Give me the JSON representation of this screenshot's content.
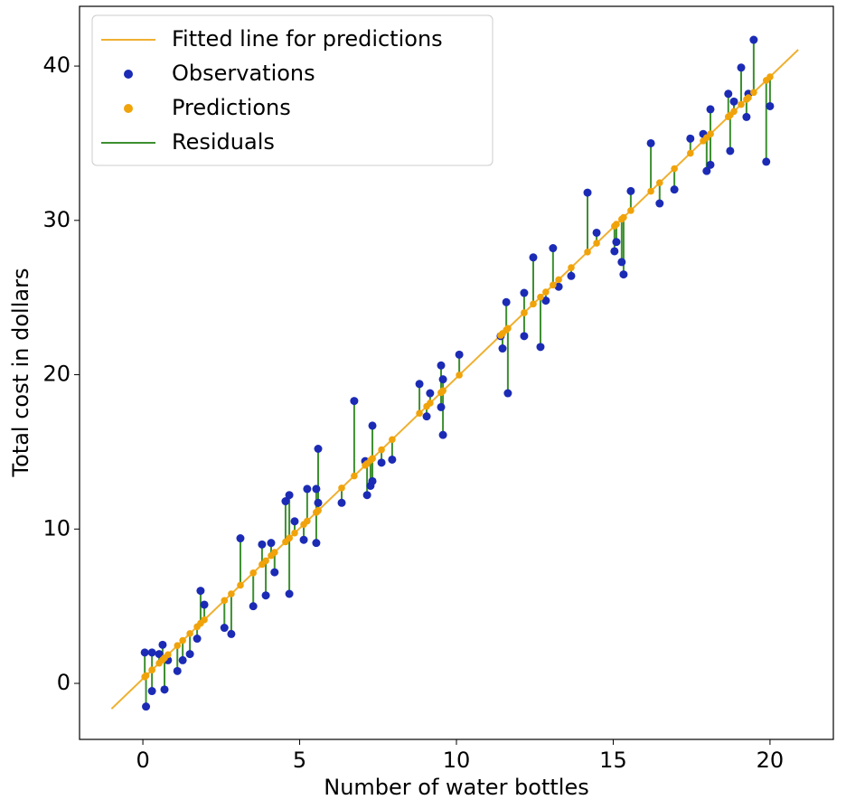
{
  "chart_data": {
    "type": "scatter",
    "xlabel": "Number of water bottles",
    "ylabel": "Total cost in dollars",
    "xlim": [
      -2.02,
      22.02
    ],
    "ylim": [
      -3.63,
      43.87
    ],
    "xticks": [
      0,
      5,
      10,
      15,
      20
    ],
    "yticks": [
      0,
      10,
      20,
      30,
      40
    ],
    "legend": "upper left",
    "x": [
      0.06,
      0.1,
      0.29,
      0.29,
      0.52,
      0.63,
      0.69,
      0.8,
      1.1,
      1.27,
      1.5,
      1.73,
      1.84,
      1.96,
      2.6,
      2.82,
      3.11,
      3.52,
      3.8,
      3.92,
      4.09,
      4.2,
      4.55,
      4.67,
      4.67,
      4.84,
      5.13,
      5.24,
      5.53,
      5.53,
      5.59,
      5.59,
      6.34,
      6.74,
      7.09,
      7.15,
      7.26,
      7.32,
      7.32,
      7.61,
      7.95,
      8.82,
      9.05,
      9.16,
      9.51,
      9.51,
      9.57,
      9.57,
      10.09,
      11.41,
      11.47,
      11.59,
      11.64,
      12.16,
      12.16,
      12.45,
      12.68,
      12.85,
      13.08,
      13.26,
      13.66,
      14.18,
      14.47,
      15.04,
      15.1,
      15.27,
      15.33,
      15.56,
      16.2,
      16.48,
      16.95,
      17.46,
      17.87,
      17.98,
      18.1,
      18.1,
      18.67,
      18.73,
      18.85,
      19.08,
      19.25,
      19.31,
      19.48,
      19.88,
      20.0
    ],
    "series": [
      {
        "name": "Fitted line for predictions",
        "kind": "line",
        "color": "#efb030",
        "x": [
          -1,
          20.9
        ],
        "values": [
          -1.65,
          41.06
        ]
      },
      {
        "name": "Observations",
        "kind": "points",
        "color": "#1b2bb5",
        "values": [
          2.0,
          -1.5,
          2.0,
          -0.5,
          1.9,
          2.5,
          -0.4,
          1.5,
          0.8,
          1.5,
          1.9,
          2.9,
          6.0,
          5.1,
          3.6,
          3.2,
          9.4,
          5.0,
          9.0,
          5.7,
          9.1,
          7.2,
          11.8,
          12.2,
          5.8,
          10.5,
          9.3,
          12.6,
          9.1,
          12.6,
          15.2,
          11.7,
          11.7,
          18.3,
          14.4,
          12.2,
          12.8,
          16.7,
          13.1,
          14.3,
          14.5,
          19.4,
          17.3,
          18.8,
          17.9,
          20.6,
          19.7,
          16.1,
          21.3,
          22.5,
          21.7,
          24.7,
          18.8,
          25.3,
          22.5,
          27.6,
          21.8,
          24.8,
          28.2,
          25.7,
          26.4,
          31.8,
          29.2,
          28.0,
          28.6,
          27.3,
          26.5,
          31.9,
          35.0,
          31.1,
          32.0,
          35.3,
          35.6,
          33.2,
          33.6,
          37.2,
          38.2,
          34.5,
          37.7,
          39.9,
          36.7,
          38.2,
          41.7,
          33.8,
          37.4
        ]
      },
      {
        "name": "Predictions",
        "kind": "points",
        "color": "#f0a30a",
        "values": [
          0.42,
          0.5,
          0.87,
          0.87,
          1.31,
          1.53,
          1.65,
          1.86,
          2.45,
          2.78,
          3.23,
          3.67,
          3.89,
          4.12,
          5.37,
          5.8,
          6.36,
          7.16,
          7.71,
          7.94,
          8.28,
          8.49,
          9.17,
          9.41,
          9.41,
          9.74,
          10.3,
          10.52,
          11.08,
          11.08,
          11.2,
          11.2,
          12.66,
          13.44,
          14.13,
          14.24,
          14.46,
          14.57,
          14.57,
          15.14,
          15.8,
          17.5,
          17.95,
          18.16,
          18.84,
          18.84,
          18.96,
          18.96,
          19.98,
          22.55,
          22.67,
          22.9,
          23.0,
          24.01,
          24.01,
          24.58,
          25.03,
          25.36,
          25.81,
          26.16,
          26.94,
          27.95,
          28.52,
          29.63,
          29.75,
          30.08,
          30.19,
          30.64,
          31.89,
          32.44,
          33.35,
          34.35,
          35.15,
          35.36,
          35.6,
          35.6,
          36.71,
          36.82,
          37.06,
          37.51,
          37.84,
          37.95,
          38.29,
          39.07,
          39.3
        ]
      },
      {
        "name": "Residuals",
        "kind": "residuals",
        "color": "#3d8f30"
      }
    ]
  }
}
